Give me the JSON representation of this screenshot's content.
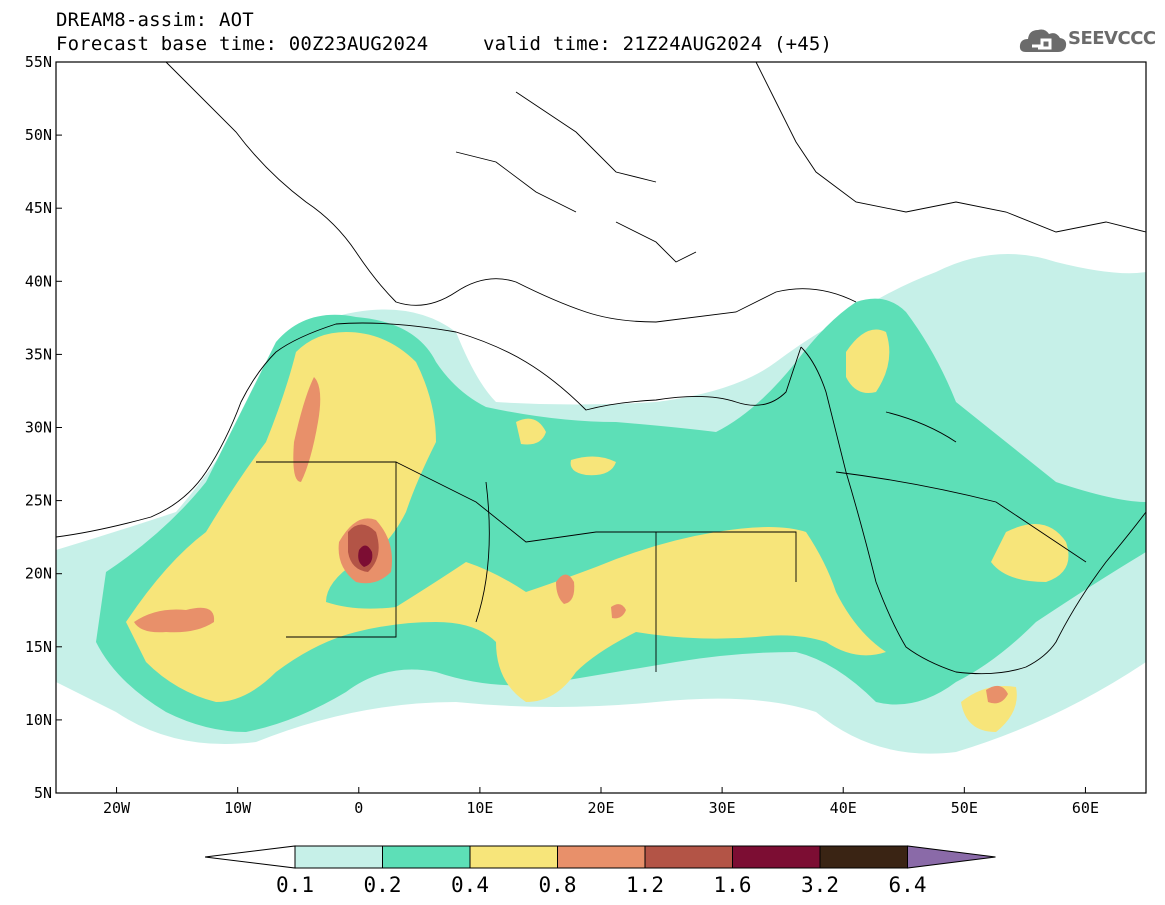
{
  "header": {
    "title": "DREAM8-assim: AOT",
    "base_time": "Forecast base time: 00Z23AUG2024",
    "valid_time": "valid time: 21Z24AUG2024 (+45)"
  },
  "logo": {
    "text": "SEEVCCC",
    "icon": "cloud-icon"
  },
  "map": {
    "lon_range": [
      -25,
      65
    ],
    "lat_range": [
      5,
      55
    ],
    "lon_ticks": [
      {
        "label": "20W",
        "lon": -20
      },
      {
        "label": "10W",
        "lon": -10
      },
      {
        "label": "0",
        "lon": 0
      },
      {
        "label": "10E",
        "lon": 10
      },
      {
        "label": "20E",
        "lon": 20
      },
      {
        "label": "30E",
        "lon": 30
      },
      {
        "label": "40E",
        "lon": 40
      },
      {
        "label": "50E",
        "lon": 50
      },
      {
        "label": "60E",
        "lon": 60
      }
    ],
    "lat_ticks": [
      {
        "label": "55N",
        "lat": 55
      },
      {
        "label": "50N",
        "lat": 50
      },
      {
        "label": "45N",
        "lat": 45
      },
      {
        "label": "40N",
        "lat": 40
      },
      {
        "label": "35N",
        "lat": 35
      },
      {
        "label": "30N",
        "lat": 30
      },
      {
        "label": "25N",
        "lat": 25
      },
      {
        "label": "20N",
        "lat": 20
      },
      {
        "label": "15N",
        "lat": 15
      },
      {
        "label": "10N",
        "lat": 10
      },
      {
        "label": "5N",
        "lat": 5
      }
    ]
  },
  "colorbar": {
    "labels": [
      "0.1",
      "0.2",
      "0.4",
      "0.8",
      "1.2",
      "1.6",
      "3.2",
      "6.4"
    ],
    "colors": [
      "#ffffff",
      "#c6f0e8",
      "#5ddfb7",
      "#f7e57a",
      "#e8906a",
      "#b35446",
      "#7c0d33",
      "#3a2414",
      "#8a6aa8"
    ]
  }
}
